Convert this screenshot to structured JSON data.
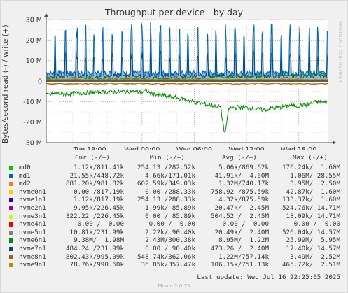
{
  "title": "Throughput per device - by day",
  "watermark": "RRDTOOL / TOBI OETIKER",
  "footer": "Munin 2.0.75",
  "last_update": "Last update: Wed Jul 16 22:25:05 2025",
  "colors": {
    "background": "#f0f0f0",
    "plot_bg": "#ffffff",
    "grid_major": "#e8a0a0",
    "grid_minor": "#e0e0e0",
    "md0": "#00cc00",
    "md1": "#0066b3",
    "md2": "#ff8000",
    "nvme0n1": "#ffcc00",
    "nvme1n1": "#330099",
    "nvme2n1": "#990099",
    "nvme3n1": "#ccff00",
    "nvme4n1": "#ff0000",
    "nvme5n1": "#808080",
    "nvme6n1": "#008f00",
    "nvme7n1": "#00487d",
    "nvme8n1": "#b35a00",
    "nvme9n1": "#b38f00"
  },
  "legend_headers": {
    "cur": "Cur (-/+)",
    "min": "Min (-/+)",
    "avg": "Avg (-/+)",
    "max": "Max (-/+)"
  },
  "legend": [
    {
      "name": "md0",
      "color": "#00cc00",
      "cur": "1.12k/811.41k",
      "min": "254.13 /282.52k",
      "avg": "5.06k/869.62k",
      "max": "176.24k/  1.60M"
    },
    {
      "name": "md1",
      "color": "#0066b3",
      "cur": "21.55k/448.72k",
      "min": "4.66k/171.01k",
      "avg": "41.91k/  4.60M",
      "max": "1.06M/ 28.55M"
    },
    {
      "name": "md2",
      "color": "#ff8000",
      "cur": "881.20k/981.82k",
      "min": "602.59k/349.03k",
      "avg": "1.32M/740.17k",
      "max": "3.95M/  2.50M"
    },
    {
      "name": "nvme0n1",
      "color": "#ffcc00",
      "cur": "0.00 /817.19k",
      "min": "0.00 /288.33k",
      "avg": "758.92 /875.59k",
      "max": "42.87k/  1.60M"
    },
    {
      "name": "nvme1n1",
      "color": "#330099",
      "cur": "1.12k/817.19k",
      "min": "254.13 /288.33k",
      "avg": "4.32k/875.59k",
      "max": "133.37k/  1.60M"
    },
    {
      "name": "nvme2n1",
      "color": "#990099",
      "cur": "9.95k/226.45k",
      "min": "1.99k/ 85.89k",
      "avg": "20.47k/  2.45M",
      "max": "524.76k/ 14.71M"
    },
    {
      "name": "nvme3n1",
      "color": "#ccff00",
      "cur": "322.22 /226.45k",
      "min": "0.00 / 85.89k",
      "avg": "504.52 /  2.45M",
      "max": "18.09k/ 14.71M"
    },
    {
      "name": "nvme4n1",
      "color": "#ff0000",
      "cur": "0.00 /  0.00",
      "min": "0.00 /  0.00",
      "avg": "0.00 /  0.00",
      "max": "0.00 /  0.00"
    },
    {
      "name": "nvme5n1",
      "color": "#808080",
      "cur": "10.81k/231.99k",
      "min": "2.22k/ 90.40k",
      "avg": "20.49k/  2.40M",
      "max": "526.04k/ 14.57M"
    },
    {
      "name": "nvme6n1",
      "color": "#008f00",
      "cur": "9.38M/  1.98M",
      "min": "2.43M/300.38k",
      "avg": "8.95M/  1.22M",
      "max": "25.99M/  5.95M"
    },
    {
      "name": "nvme7n1",
      "color": "#00487d",
      "cur": "484.24 /231.99k",
      "min": "0.00 / 90.40k",
      "avg": "473.26 /  2.40M",
      "max": "17.40k/ 14.57M"
    },
    {
      "name": "nvme8n1",
      "color": "#b35a00",
      "cur": "802.43k/995.09k",
      "min": "548.74k/362.06k",
      "avg": "1.22M/757.14k",
      "max": "3.49M/  2.52M"
    },
    {
      "name": "nvme9n1",
      "color": "#b38f00",
      "cur": "78.76k/990.60k",
      "min": "36.85k/357.47k",
      "avg": "106.15k/751.13k",
      "max": "465.72k/  2.51M"
    }
  ],
  "chart_data": {
    "type": "line",
    "ylabel": "Bytes/second read (-) / write (+)",
    "ylim": [
      -30000000,
      30000000
    ],
    "yticks": [
      {
        "v": 30000000,
        "label": "30 M"
      },
      {
        "v": 20000000,
        "label": "20 M"
      },
      {
        "v": 10000000,
        "label": "10 M"
      },
      {
        "v": 0,
        "label": "0"
      },
      {
        "v": -10000000,
        "label": "-10 M"
      },
      {
        "v": -20000000,
        "label": "-20 M"
      },
      {
        "v": -30000000,
        "label": "-30 M"
      }
    ],
    "xlim_hours": [
      13,
      39
    ],
    "xticks": [
      {
        "h": 18,
        "label": "Tue 18:00"
      },
      {
        "h": 24,
        "label": "Wed 00:00"
      },
      {
        "h": 30,
        "label": "Wed 06:00"
      },
      {
        "h": 36,
        "label": "Wed 12:00"
      },
      {
        "h": 42,
        "label": "Wed 18:00"
      }
    ],
    "series": [
      {
        "name": "md1",
        "color": "#0066b3",
        "write_baseline": 4600000,
        "write_spike_hours": [
          14,
          15.2,
          16.5,
          17.5,
          18.5,
          19.5,
          20.6,
          21.7,
          22.8,
          24,
          25,
          26.1,
          27.2,
          28.3,
          29.3,
          30.4,
          31.5,
          32.5,
          33.6,
          34.7,
          35.7,
          36.8,
          37.8,
          38.9,
          40,
          41,
          42.1,
          43.2,
          44.2,
          45.3
        ],
        "write_max": 28550000
      },
      {
        "name": "nvme6n1",
        "color": "#008f00",
        "read_points": [
          [
            13,
            -7
          ],
          [
            13.5,
            -6.5
          ],
          [
            14,
            -6
          ],
          [
            15,
            -6.3
          ],
          [
            16,
            -6.1
          ],
          [
            17,
            -5.8
          ],
          [
            18,
            -5.5
          ],
          [
            19,
            -5.4
          ],
          [
            20,
            -5.2
          ],
          [
            21,
            -5.3
          ],
          [
            22,
            -5.1
          ],
          [
            23,
            -5.0
          ],
          [
            24,
            -5.5
          ],
          [
            24.5,
            -4.6
          ],
          [
            25,
            -6.2
          ],
          [
            26,
            -6.8
          ],
          [
            27,
            -7.5
          ],
          [
            28,
            -8.2
          ],
          [
            29,
            -9.0
          ],
          [
            30,
            -10.2
          ],
          [
            31,
            -11.0
          ],
          [
            32,
            -11.8
          ],
          [
            33,
            -12.5
          ],
          [
            33.5,
            -25.9
          ],
          [
            34,
            -13.2
          ],
          [
            35,
            -12.8
          ],
          [
            36,
            -13.0
          ],
          [
            37,
            -13.6
          ],
          [
            38,
            -14.0
          ],
          [
            39,
            -13.2
          ],
          [
            40,
            -12.8
          ],
          [
            41,
            -11.8
          ],
          [
            42,
            -12.0
          ],
          [
            43,
            -11.5
          ],
          [
            44,
            -10.2
          ],
          [
            45,
            -10.5
          ],
          [
            45.3,
            -9.4
          ]
        ],
        "write_level": 1220000
      },
      {
        "name": "md2",
        "color": "#ff8000",
        "read_level": -1320000,
        "write_level": 740000
      },
      {
        "name": "nvme8n1",
        "color": "#b35a00",
        "read_level": -1220000,
        "write_level": 757000
      },
      {
        "name": "nvme9n1",
        "color": "#b38f00",
        "read_level": -106000,
        "write_level": 751000
      }
    ]
  }
}
